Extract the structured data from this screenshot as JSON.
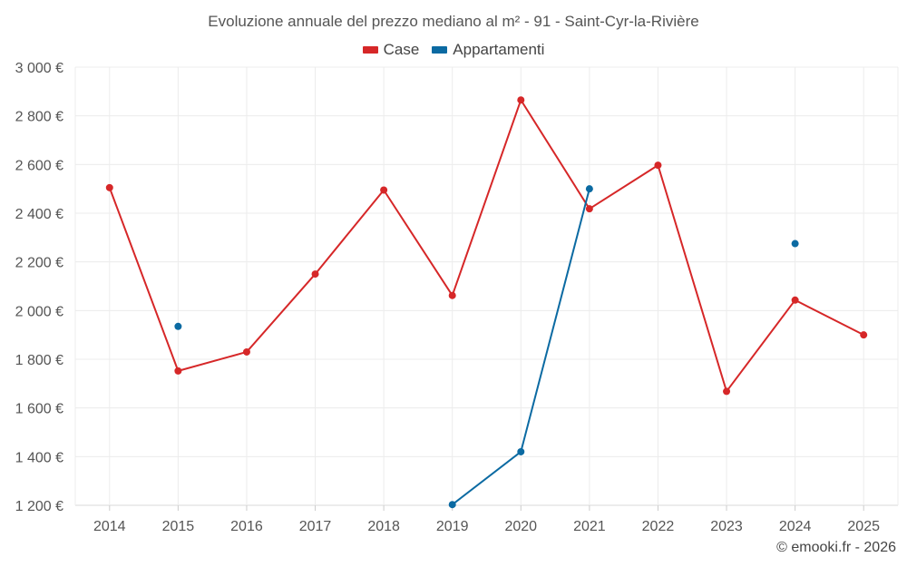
{
  "chart_data": {
    "type": "line",
    "title": "Evoluzione annuale del prezzo mediano al m² - 91 - Saint-Cyr-la-Rivière",
    "categories": [
      "2014",
      "2015",
      "2016",
      "2017",
      "2018",
      "2019",
      "2020",
      "2021",
      "2022",
      "2023",
      "2024",
      "2025"
    ],
    "series": [
      {
        "name": "Case",
        "color": "#d62728",
        "values": [
          2505,
          1752,
          1830,
          2150,
          2495,
          2062,
          2865,
          2418,
          2597,
          1668,
          2043,
          1900
        ]
      },
      {
        "name": "Appartamenti",
        "color": "#0b6aa2",
        "values": [
          null,
          1935,
          null,
          null,
          null,
          1203,
          1420,
          2500,
          null,
          null,
          2275,
          null
        ]
      }
    ],
    "xlabel": "",
    "ylabel": "",
    "ylim": [
      1200,
      3000
    ],
    "yticks": [
      1200,
      1400,
      1600,
      1800,
      2000,
      2200,
      2400,
      2600,
      2800,
      3000
    ],
    "ytick_labels": [
      "1 200 €",
      "1 400 €",
      "1 600 €",
      "1 800 €",
      "2 000 €",
      "2 200 €",
      "2 400 €",
      "2 600 €",
      "2 800 €",
      "3 000 €"
    ],
    "grid": true,
    "legend_position": "top-center"
  },
  "credit": "© emooki.fr - 2026"
}
